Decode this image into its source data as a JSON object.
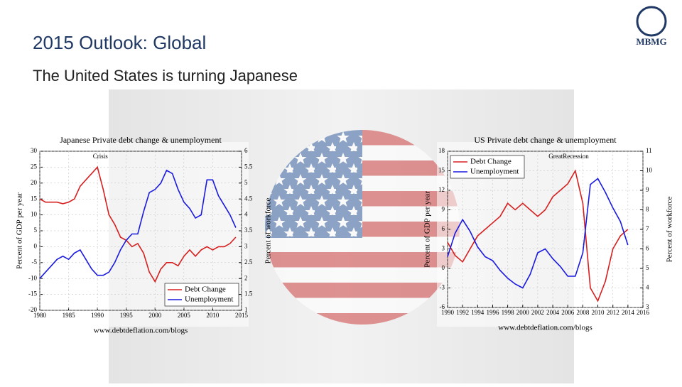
{
  "slide": {
    "title": "2015 Outlook: Global",
    "subtitle": "The United States is turning Japanese",
    "logo": "MBMG"
  },
  "chart_data": [
    {
      "type": "line",
      "title": "Japanese Private debt change & unemployment",
      "annotation": "Crisis",
      "y_label": "Percent of GDP per year",
      "y2_label": "Percent of workforce",
      "source": "www.debtdeflation.com/blogs",
      "legend": "lower right",
      "x": [
        1980,
        1981,
        1982,
        1983,
        1984,
        1985,
        1986,
        1987,
        1988,
        1989,
        1990,
        1991,
        1992,
        1993,
        1994,
        1995,
        1996,
        1997,
        1998,
        1999,
        2000,
        2001,
        2002,
        2003,
        2004,
        2005,
        2006,
        2007,
        2008,
        2009,
        2010,
        2011,
        2012,
        2013,
        2014
      ],
      "xlim": [
        1980,
        2015
      ],
      "xticks": [
        1980,
        1985,
        1990,
        1995,
        2000,
        2005,
        2010,
        2015
      ],
      "ylim": [
        -20,
        30
      ],
      "yticks": [
        -20,
        -15,
        -10,
        -5,
        0,
        5,
        10,
        15,
        20,
        25,
        30
      ],
      "y2lim": [
        1,
        6
      ],
      "y2ticks": [
        1,
        1.5,
        2,
        2.5,
        3,
        3.5,
        4,
        4.5,
        5,
        5.5,
        6
      ],
      "series": [
        {
          "name": "Debt Change",
          "color": "#d62020",
          "values": [
            15,
            14,
            14,
            14,
            13.5,
            14,
            15,
            19,
            21,
            23,
            25,
            18,
            10,
            7,
            3,
            2,
            0,
            1,
            -2,
            -8,
            -11,
            -7,
            -5,
            -5,
            -6,
            -3,
            -1,
            -3,
            -1,
            0,
            -1,
            0,
            0,
            1,
            3
          ]
        },
        {
          "name": "Unemployment",
          "color": "#1a1adf",
          "axis": "y2",
          "values": [
            2.0,
            2.2,
            2.4,
            2.6,
            2.7,
            2.6,
            2.8,
            2.9,
            2.6,
            2.3,
            2.1,
            2.1,
            2.2,
            2.5,
            2.9,
            3.2,
            3.4,
            3.4,
            4.1,
            4.7,
            4.8,
            5.0,
            5.4,
            5.3,
            4.8,
            4.4,
            4.2,
            3.9,
            4.0,
            5.1,
            5.1,
            4.6,
            4.3,
            4.0,
            3.6
          ]
        }
      ]
    },
    {
      "type": "line",
      "title": "US Private debt change & unemployment",
      "annotation": "GreatRecession",
      "y_label": "Percent of GDP per year",
      "y2_label": "Percent of workforce",
      "source": "www.debtdeflation.com/blogs",
      "legend": "upper left",
      "x": [
        1990,
        1991,
        1992,
        1993,
        1994,
        1995,
        1996,
        1997,
        1998,
        1999,
        2000,
        2001,
        2002,
        2003,
        2004,
        2005,
        2006,
        2007,
        2008,
        2009,
        2010,
        2011,
        2012,
        2013,
        2014
      ],
      "xlim": [
        1990,
        2016
      ],
      "xticks": [
        1990,
        1992,
        1994,
        1996,
        1998,
        2000,
        2002,
        2004,
        2006,
        2008,
        2010,
        2012,
        2014,
        2016
      ],
      "ylim": [
        -6,
        18
      ],
      "yticks": [
        -6,
        -3,
        0,
        3,
        6,
        9,
        12,
        15,
        18
      ],
      "y2lim": [
        3,
        11
      ],
      "y2ticks": [
        3,
        4,
        5,
        6,
        7,
        8,
        9,
        10,
        11
      ],
      "series": [
        {
          "name": "Debt Change",
          "color": "#d62020",
          "values": [
            4,
            2,
            1,
            3,
            5,
            6,
            7,
            8,
            10,
            9,
            10,
            9,
            8,
            9,
            11,
            12,
            13,
            15,
            10,
            -3,
            -5,
            -2,
            3,
            5,
            6
          ]
        },
        {
          "name": "Unemployment",
          "color": "#1a1adf",
          "axis": "y2",
          "values": [
            5.6,
            6.8,
            7.5,
            6.9,
            6.1,
            5.6,
            5.4,
            4.9,
            4.5,
            4.2,
            4.0,
            4.7,
            5.8,
            6.0,
            5.5,
            5.1,
            4.6,
            4.6,
            5.8,
            9.3,
            9.6,
            8.9,
            8.1,
            7.4,
            6.2
          ]
        }
      ]
    }
  ]
}
